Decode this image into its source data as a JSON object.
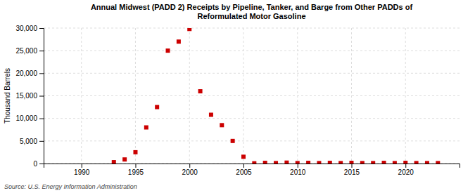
{
  "chart_data": {
    "type": "scatter",
    "title": "Annual Midwest (PADD 2) Receipts by Pipeline, Tanker, and Barge from Other PADDs of\nReformulated Motor Gasoline",
    "ylabel": "Thousand Barrels",
    "source": "Source: U.S. Energy Information Administration",
    "color": "#cc0000",
    "marker": "square",
    "grid": true,
    "x": [
      1993,
      1994,
      1995,
      1996,
      1997,
      1998,
      1999,
      2000,
      2001,
      2002,
      2003,
      2004,
      2005,
      2006,
      2007,
      2008,
      2009,
      2010,
      2011,
      2012,
      2013,
      2014,
      2015,
      2016,
      2017,
      2018,
      2019,
      2020,
      2021,
      2022,
      2023
    ],
    "values": [
      300,
      900,
      2500,
      8000,
      12500,
      25000,
      27000,
      29800,
      16000,
      10800,
      8500,
      5000,
      1500,
      50,
      150,
      100,
      200,
      100,
      150,
      100,
      150,
      100,
      150,
      100,
      100,
      150,
      100,
      150,
      100,
      100,
      100
    ],
    "xlim": [
      1986.5,
      2025
    ],
    "ylim": [
      0,
      30000
    ],
    "xticks": [
      1990,
      1995,
      2000,
      2005,
      2010,
      2015,
      2020
    ],
    "yticks": [
      0,
      {
        "value": 5000,
        "label": "5,000"
      },
      {
        "value": 10000,
        "label": "10,000"
      },
      {
        "value": 15000,
        "label": "15,000"
      },
      {
        "value": 20000,
        "label": "20,000"
      },
      {
        "value": 25000,
        "label": "25,000"
      },
      {
        "value": 30000,
        "label": "30,000"
      }
    ]
  }
}
